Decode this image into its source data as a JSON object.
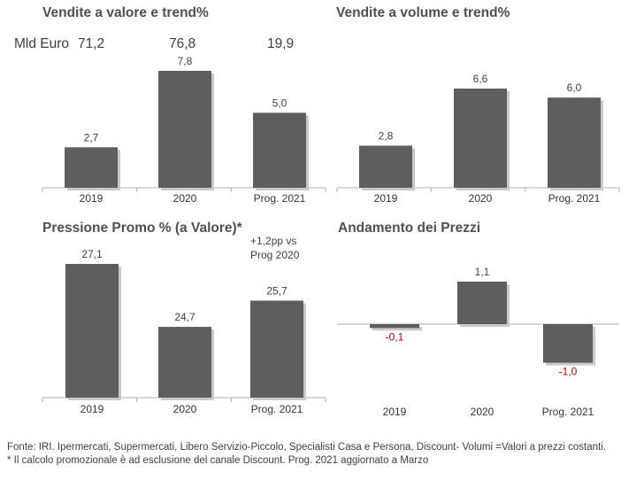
{
  "footnotes": [
    "Fonte: IRI. Ipermercati, Supermercati, Libero Servizio-Piccolo, Specialisti Casa e Persona, Discount- Volumi =Valori a prezzi costanti.",
    "* Il calcolo promozionale è ad esclusione del canale Discount. Prog. 2021 aggiornato a Marzo"
  ],
  "colors": {
    "bar": "#5e5e5e",
    "positive_label": "#404040",
    "negative_label": "#c00000",
    "axis": "#b0b0b0"
  },
  "chart_data": [
    {
      "type": "bar",
      "title": "Vendite a valore e trend%",
      "summary": {
        "label": "Mld Euro",
        "values": [
          "71,2",
          "76,8",
          "19,9"
        ]
      },
      "categories": [
        "2019",
        "2020",
        "Prog. 2021"
      ],
      "values": [
        2.7,
        7.8,
        5.0
      ],
      "value_labels": [
        "2,7",
        "7,8",
        "5,0"
      ],
      "ylim": [
        0,
        7.8
      ]
    },
    {
      "type": "bar",
      "title": "Vendite a volume e trend%",
      "categories": [
        "2019",
        "2020",
        "Prog. 2021"
      ],
      "values": [
        2.8,
        6.6,
        6.0
      ],
      "value_labels": [
        "2,8",
        "6,6",
        "6,0"
      ],
      "ylim": [
        0,
        6.6
      ]
    },
    {
      "type": "bar",
      "title": "Pressione Promo % (a Valore)*",
      "annotation": [
        "+1,2pp vs",
        "Prog 2020"
      ],
      "categories": [
        "2019",
        "2020",
        "Prog. 2021"
      ],
      "values": [
        27.1,
        24.7,
        25.7
      ],
      "value_labels": [
        "27,1",
        "24,7",
        "25,7"
      ],
      "ylim": [
        22.0,
        27.1
      ]
    },
    {
      "type": "bar",
      "title": "Andamento dei Prezzi",
      "categories": [
        "2019",
        "2020",
        "Prog. 2021"
      ],
      "values": [
        -0.1,
        1.1,
        -1.0
      ],
      "value_labels": [
        "-0,1",
        "1,1",
        "-1,0"
      ],
      "ylim": [
        -1.0,
        1.1
      ]
    }
  ]
}
